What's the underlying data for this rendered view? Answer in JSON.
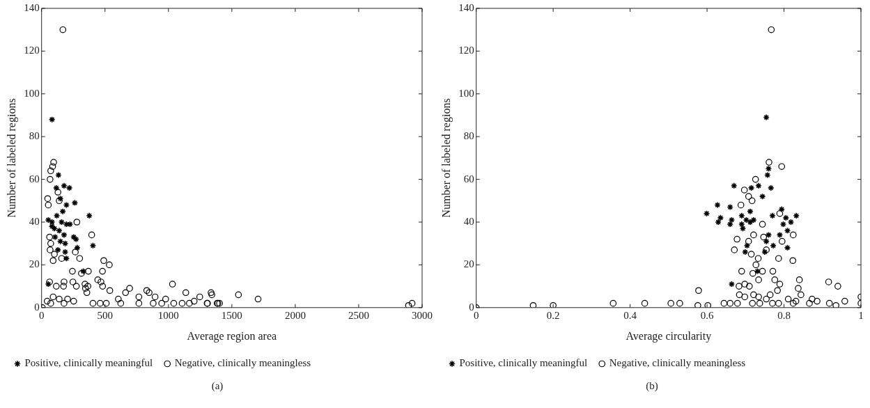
{
  "chart_data": [
    {
      "type": "scatter",
      "xlabel": "Average region area",
      "ylabel": "Number of labeled regions",
      "xlim": [
        0,
        3000
      ],
      "ylim": [
        0,
        140
      ],
      "xticks": [
        0,
        500,
        1000,
        1500,
        2000,
        2500,
        3000
      ],
      "yticks": [
        0,
        20,
        40,
        60,
        80,
        100,
        120,
        140
      ],
      "grid": false,
      "legend": "bottom",
      "annotations": [
        "(a)"
      ],
      "series": [
        {
          "name": "Positive, clinically meaningful",
          "color": "#000000",
          "marker": "cross",
          "x": [
            82,
            133,
            116,
            177,
            219,
            262,
            196,
            376,
            148,
            53,
            82,
            120,
            158,
            196,
            224,
            101,
            139,
            177,
            107,
            148,
            186,
            253,
            272,
            281,
            405,
            186,
            196,
            129,
            53,
            329,
            82,
            167
          ],
          "values": [
            88,
            62,
            56,
            57,
            56,
            49,
            48,
            43,
            51,
            41,
            40,
            43,
            40,
            39,
            39,
            37,
            36,
            34,
            33,
            31,
            30,
            33,
            32,
            28,
            29,
            26,
            23,
            27,
            11,
            17,
            38,
            45
          ]
        },
        {
          "name": "Negative, clinically meaningless",
          "color": "#000000",
          "marker": "circle",
          "x": [
            168,
            95,
            87,
            72,
            67,
            48,
            53,
            139,
            129,
            278,
            395,
            63,
            72,
            67,
            101,
            91,
            158,
            266,
            300,
            490,
            534,
            243,
            314,
            369,
            480,
            63,
            116,
            177,
            173,
            247,
            274,
            342,
            365,
            443,
            468,
            481,
            346,
            357,
            538,
            694,
            662,
            767,
            829,
            848,
            1032,
            978,
            1137,
            1247,
            1336,
            91,
            205,
            6,
            44,
            72,
            139,
            177,
            253,
            405,
            462,
            510,
            605,
            624,
            767,
            895,
            880,
            947,
            1042,
            1108,
            1165,
            1203,
            1308,
            1384,
            1403,
            1342,
            1552,
            1707,
            1305,
            1390,
            2893,
            2921
          ],
          "values": [
            130,
            68,
            66,
            64,
            60,
            51,
            48,
            50,
            54,
            40,
            34,
            33,
            30,
            27,
            25,
            22,
            23,
            26,
            23,
            22,
            20,
            17,
            16,
            17,
            17,
            12,
            10,
            12,
            10,
            12,
            10,
            11,
            10,
            13,
            12,
            10,
            9,
            7,
            8,
            9,
            7,
            5,
            8,
            7,
            11,
            4,
            7,
            5,
            7,
            5,
            4,
            0,
            3,
            2,
            4,
            2,
            3,
            2,
            2,
            2,
            4,
            2,
            2,
            5,
            2,
            2,
            2,
            2,
            2,
            3,
            2,
            2,
            2,
            6,
            6,
            4,
            2,
            2,
            1,
            2
          ]
        }
      ]
    },
    {
      "type": "scatter",
      "xlabel": "Average circularity",
      "ylabel": "Number of labeled regions",
      "xlim": [
        0,
        1
      ],
      "ylim": [
        0,
        140
      ],
      "xticks": [
        0,
        0.2,
        0.4,
        0.6,
        0.8,
        1
      ],
      "yticks": [
        0,
        20,
        40,
        60,
        80,
        100,
        120,
        140
      ],
      "grid": false,
      "legend": "bottom",
      "annotations": [
        "(b)"
      ],
      "series": [
        {
          "name": "Positive, clinically meaningful",
          "color": "#000000",
          "marker": "cross",
          "x": [
            0.754,
            0.76,
            0.757,
            0.67,
            0.715,
            0.734,
            0.766,
            0.744,
            0.627,
            0.66,
            0.599,
            0.712,
            0.635,
            0.629,
            0.664,
            0.66,
            0.69,
            0.69,
            0.702,
            0.712,
            0.721,
            0.693,
            0.77,
            0.794,
            0.805,
            0.818,
            0.832,
            0.798,
            0.789,
            0.809,
            0.76,
            0.754,
            0.772,
            0.809,
            0.75,
            0.704,
            0.699,
            0.731,
            0.664
          ],
          "values": [
            89,
            65,
            62,
            57,
            56,
            57,
            56,
            52,
            48,
            47,
            44,
            45,
            42,
            40,
            41,
            39,
            43,
            39,
            41,
            40,
            41,
            37,
            43,
            46,
            42,
            40,
            43,
            39,
            34,
            36,
            34,
            31,
            29,
            28,
            26,
            29,
            26,
            17,
            11
          ]
        },
        {
          "name": "Negative, clinically meaningless",
          "color": "#000000",
          "marker": "circle",
          "x": [
            0,
            0.148,
            0.2,
            0.356,
            0.438,
            0.506,
            0.529,
            0.578,
            0.576,
            0.602,
            0.644,
            0.66,
            0.679,
            0.684,
            0.698,
            0.698,
            0.71,
            0.721,
            0.718,
            0.734,
            0.737,
            0.754,
            0.764,
            0.77,
            0.786,
            0.776,
            0.789,
            0.783,
            0.811,
            0.824,
            0.831,
            0.84,
            0.837,
            0.844,
            0.866,
            0.873,
            0.886,
            0.916,
            0.94,
            0.918,
            0.935,
            0.958,
            1,
            1,
            0.767,
            0.761,
            0.794,
            0.726,
            0.697,
            0.708,
            0.717,
            0.688,
            0.744,
            0.789,
            0.721,
            0.747,
            0.678,
            0.708,
            0.795,
            0.824,
            0.671,
            0.715,
            0.754,
            0.786,
            0.823,
            0.733,
            0.727,
            0.69,
            0.719,
            0.744,
            0.771,
            0.734,
            0.683
          ],
          "values": [
            0,
            1,
            1,
            2,
            2,
            2,
            2,
            8,
            1,
            1,
            2,
            2,
            2,
            6,
            5,
            11,
            10,
            6,
            2,
            5,
            2,
            4,
            6,
            2,
            2,
            13,
            11,
            8,
            4,
            2,
            3,
            13,
            9,
            6,
            2,
            4,
            3,
            12,
            10,
            2,
            1,
            3,
            5,
            2,
            130,
            68,
            66,
            60,
            55,
            52,
            50,
            48,
            39,
            44,
            34,
            33,
            32,
            31,
            31,
            34,
            27,
            25,
            27,
            23,
            22,
            23,
            20,
            17,
            16,
            17,
            17,
            13,
            10
          ]
        }
      ]
    }
  ]
}
